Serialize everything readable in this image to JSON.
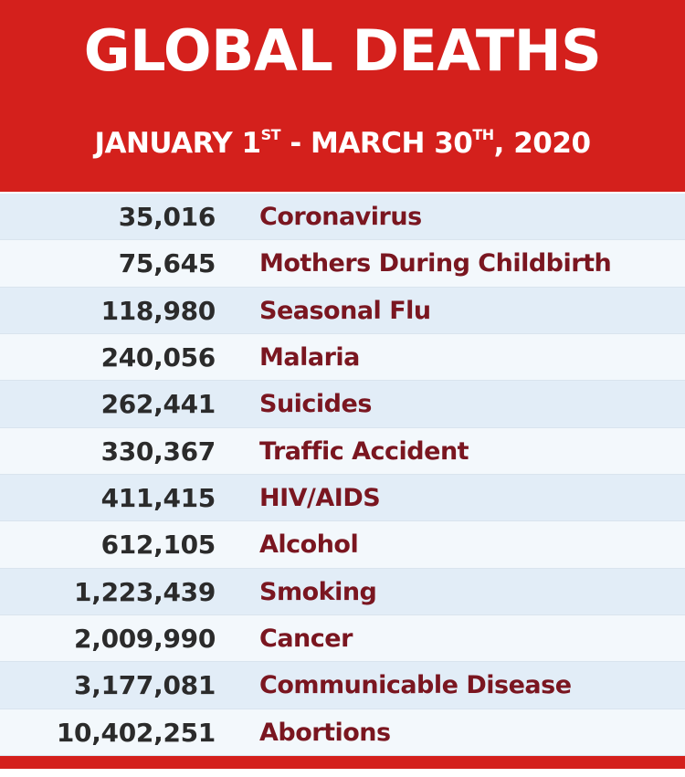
{
  "header": {
    "title": "GLOBAL DEATHS",
    "subtitle_start": "JANUARY 1",
    "subtitle_start_sup": "ST",
    "subtitle_sep": " - MARCH 30",
    "subtitle_end_sup": "TH",
    "subtitle_year": ", 2020"
  },
  "rows": [
    {
      "count": "35,016",
      "cause": "Coronavirus"
    },
    {
      "count": "75,645",
      "cause": "Mothers During Childbirth"
    },
    {
      "count": "118,980",
      "cause": "Seasonal Flu"
    },
    {
      "count": "240,056",
      "cause": "Malaria"
    },
    {
      "count": "262,441",
      "cause": "Suicides"
    },
    {
      "count": "330,367",
      "cause": "Traffic Accident"
    },
    {
      "count": "411,415",
      "cause": "HIV/AIDS"
    },
    {
      "count": "612,105",
      "cause": "Alcohol"
    },
    {
      "count": "1,223,439",
      "cause": "Smoking"
    },
    {
      "count": "2,009,990",
      "cause": "Cancer"
    },
    {
      "count": "3,177,081",
      "cause": "Communicable Disease"
    },
    {
      "count": "10,402,251",
      "cause": "Abortions"
    }
  ],
  "colors": {
    "header_red": "#d4201c",
    "cause_text": "#7a1620",
    "count_text": "#2b2b2b",
    "row_odd": "#e2edf7",
    "row_even": "#f3f8fc"
  }
}
